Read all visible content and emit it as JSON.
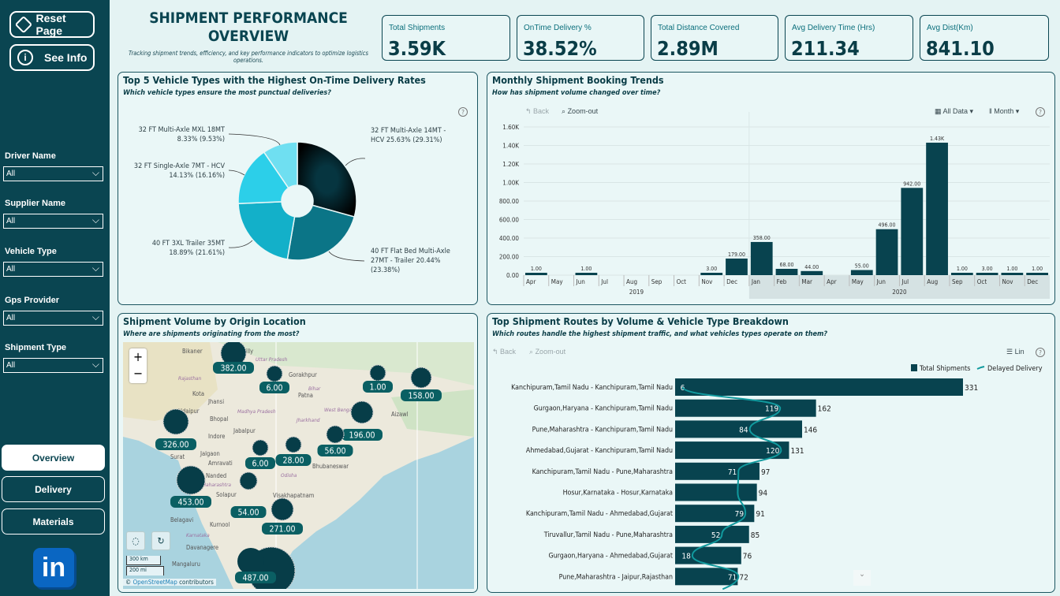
{
  "sidebar": {
    "reset_label": "Reset Page",
    "info_label": "See Info",
    "filters": [
      {
        "label": "Driver Name",
        "value": "All"
      },
      {
        "label": "Supplier Name",
        "value": "All"
      },
      {
        "label": "Vehicle Type",
        "value": "All"
      },
      {
        "label": "Gps Provider",
        "value": "All"
      },
      {
        "label": "Shipment Type",
        "value": "All"
      }
    ],
    "nav": [
      {
        "label": "Overview",
        "active": true
      },
      {
        "label": "Delivery"
      },
      {
        "label": "Materials"
      }
    ],
    "logo": "in"
  },
  "header": {
    "title": "SHIPMENT PERFORMANCE OVERVIEW",
    "subtitle": "Tracking shipment trends, efficiency, and key performance indicators to optimize logistics operations."
  },
  "kpis": [
    {
      "label": "Total Shipments",
      "value": "3.59K"
    },
    {
      "label": "OnTime Delivery %",
      "value": "38.52%"
    },
    {
      "label": "Total Distance Covered",
      "value": "2.89M"
    },
    {
      "label": "Avg Delivery Time (Hrs)",
      "value": "211.34"
    },
    {
      "label": "Avg Dist(Km)",
      "value": "841.10"
    }
  ],
  "colors": {
    "sidebar": "#0a4551",
    "bar": "#08434f",
    "line": "#119a9e",
    "bg": "#e4f3f3"
  },
  "pie": {
    "title": "Top 5 Vehicle Types with the Highest On-Time Delivery Rates",
    "subtitle": "Which vehicle types ensure the most punctual deliveries?",
    "help": "?"
  },
  "trend": {
    "title": "Monthly Shipment Booking Trends",
    "subtitle": "How has shipment volume changed over time?",
    "back": "Back",
    "zoomout": "Zoom-out",
    "alldata": "All Data",
    "month": "Month",
    "help": "?"
  },
  "map": {
    "title": "Shipment Volume by Origin Location",
    "subtitle": "Where are shipments originating from the most?",
    "zoom_in": "+",
    "zoom_out": "−",
    "scale_km": "300 km",
    "scale_mi": "200 mi",
    "attribution_link": "OpenStreetMap",
    "attribution_rest": "contributors",
    "copyright": "©",
    "places": [
      "Bikaner",
      "Bareilly",
      "Gorakhpur",
      "Patna",
      "Kota",
      "Jhansi",
      "Udaipur",
      "Bhopal",
      "Jabalpur",
      "Indore",
      "Jalgaon",
      "Surat",
      "Amravati",
      "Nanded",
      "Bhubaneswar",
      "Visakhapatnam",
      "Solapur",
      "Belagavi",
      "Kurnool",
      "Davanagere",
      "Mangaluru",
      "Aizawl",
      "Uttar Pradesh",
      "Rajasthan",
      "Madhya Pradesh",
      "Bihar",
      "West Bengal",
      "Jharkhand",
      "Odisha",
      "Karnataka",
      "Maharashtra"
    ],
    "bubbles": [
      {
        "value": "382.00"
      },
      {
        "value": "6.00"
      },
      {
        "value": "1.00"
      },
      {
        "value": "158.00"
      },
      {
        "value": "326.00"
      },
      {
        "value": "196.00"
      },
      {
        "value": "56.00"
      },
      {
        "value": "6.00"
      },
      {
        "value": "28.00"
      },
      {
        "value": "453.00"
      },
      {
        "value": "54.00"
      },
      {
        "value": "271.00"
      },
      {
        "value": "487.00"
      }
    ]
  },
  "routes": {
    "title": "Top Shipment Routes by Volume & Vehicle Type Breakdown",
    "subtitle": "Which routes handle the highest shipment traffic, and what vehicles types operate on them?",
    "back": "Back",
    "zoomout": "Zoom-out",
    "lin": "Lin",
    "help": "?"
  },
  "chart_data": [
    {
      "type": "pie",
      "variant": "donut",
      "series": [
        {
          "name": "32 FT Multi-Axle 14MT - HCV",
          "label": "32 FT Multi-Axle 14MT - HCV 25.63% (29.31%)",
          "value": 29.31
        },
        {
          "name": "40 FT Flat Bed Multi-Axle 27MT - Trailer",
          "label": "40 FT Flat Bed Multi-Axle 27MT - Trailer 20.44% (23.38%)",
          "value": 23.38
        },
        {
          "name": "40 FT 3XL Trailer 35MT",
          "label": "40 FT 3XL Trailer 35MT 18.89% (21.61%)",
          "value": 21.61
        },
        {
          "name": "32 FT Single-Axle 7MT - HCV",
          "label": "32 FT Single-Axle 7MT - HCV 14.13% (16.16%)",
          "value": 16.16
        },
        {
          "name": "32 FT Multi-Axle MXL 18MT",
          "label": "32 FT Multi-Axle MXL 18MT 8.33% (9.53%)",
          "value": 9.53
        }
      ],
      "colors": [
        "#063540",
        "#0b7587",
        "#13b0c9",
        "#2ccfe9",
        "#6fdff1"
      ]
    },
    {
      "type": "bar",
      "categories": [
        "Apr",
        "May",
        "Jun",
        "Jul",
        "Aug",
        "Sep",
        "Oct",
        "Nov",
        "Dec",
        "Jan",
        "Feb",
        "Mar",
        "Apr",
        "May",
        "Jun",
        "Jul",
        "Aug",
        "Sep",
        "Oct",
        "Nov",
        "Dec"
      ],
      "years": [
        {
          "label": "2019",
          "count": 9
        },
        {
          "label": "2020",
          "count": 12
        }
      ],
      "values": [
        1,
        0,
        1,
        0,
        0,
        0,
        0,
        3,
        179,
        358,
        68,
        44,
        0,
        55,
        496,
        942,
        1430,
        1,
        3,
        1,
        1
      ],
      "data_labels": [
        "1.00",
        "",
        "1.00",
        "",
        "",
        "",
        "",
        "3.00",
        "179.00",
        "358.00",
        "68.00",
        "44.00",
        "",
        "55.00",
        "496.00",
        "942.00",
        "1.43K",
        "1.00",
        "3.00",
        "1.00",
        "1.00"
      ],
      "yticks": [
        "0.00",
        "200.00",
        "400.00",
        "600.00",
        "800.00",
        "1.00K",
        "1.20K",
        "1.40K",
        "1.60K"
      ],
      "ylim": [
        0,
        1600
      ],
      "grid": true
    },
    {
      "type": "bar",
      "orientation": "horizontal",
      "legend": "top-right",
      "categories": [
        "Kanchipuram,Tamil Nadu - Kanchipuram,Tamil Nadu",
        "Gurgaon,Haryana - Kanchipuram,Tamil Nadu",
        "Pune,Maharashtra - Kanchipuram,Tamil Nadu",
        "Ahmedabad,Gujarat - Kanchipuram,Tamil Nadu",
        "Kanchipuram,Tamil Nadu - Pune,Maharashtra",
        "Hosur,Karnataka - Hosur,Karnataka",
        "Kanchipuram,Tamil Nadu - Ahmedabad,Gujarat",
        "Tiruvallur,Tamil Nadu - Pune,Maharashtra",
        "Gurgaon,Haryana - Ahmedabad,Gujarat",
        "Pune,Maharashtra - Jaipur,Rajasthan"
      ],
      "series": [
        {
          "name": "Total Shipments",
          "type": "bar",
          "values": [
            331,
            162,
            146,
            131,
            97,
            94,
            91,
            85,
            76,
            72
          ]
        },
        {
          "name": "Delayed Delivery",
          "type": "line",
          "values": [
            6,
            119,
            84,
            120,
            71,
            null,
            79,
            52,
            18,
            71
          ]
        }
      ]
    }
  ]
}
